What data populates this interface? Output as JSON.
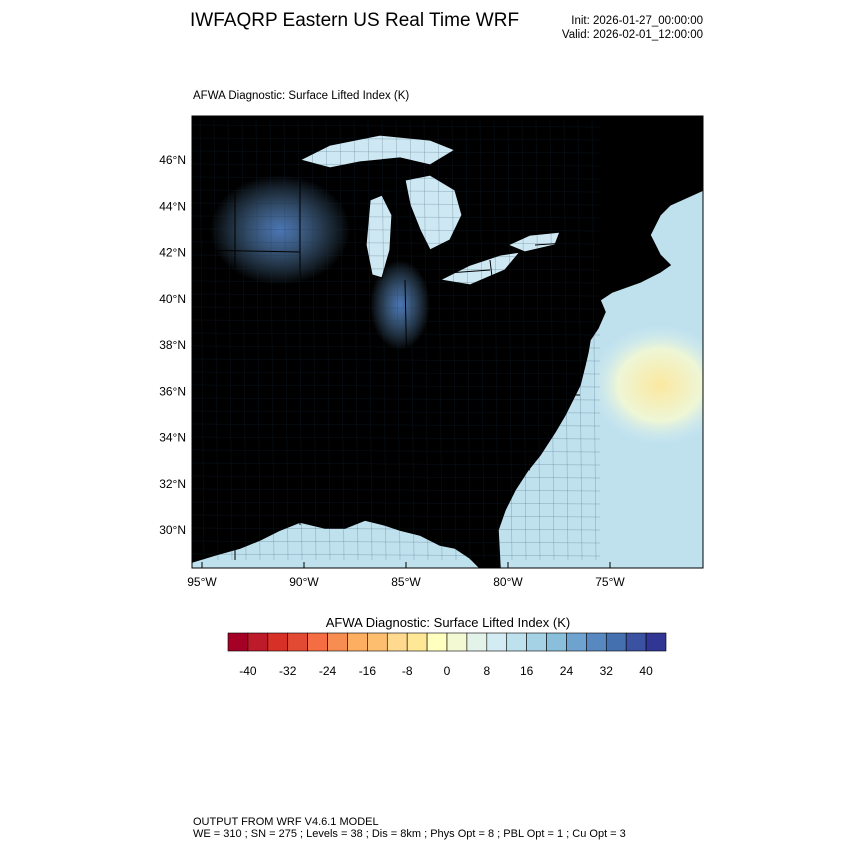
{
  "header": {
    "title": "IWFAQRP Eastern US Real Time WRF",
    "init": "Init: 2026-01-27_00:00:00",
    "valid": "Valid: 2026-02-01_12:00:00"
  },
  "plot": {
    "subtitle": "AFWA Diagnostic: Surface Lifted Index   (K)",
    "lat_labels": [
      "46°N",
      "44°N",
      "42°N",
      "40°N",
      "38°N",
      "36°N",
      "34°N",
      "32°N",
      "30°N"
    ],
    "lon_labels": [
      "95°W",
      "90°W",
      "85°W",
      "80°W",
      "75°W"
    ],
    "land_color": "#6fa3cf",
    "water_color": "#bfe1ee",
    "max_color": "#fbe8a0"
  },
  "colorbar": {
    "title": "AFWA Diagnostic: Surface Lifted Index  (K)",
    "labels": [
      "-40",
      "-32",
      "-24",
      "-16",
      "-8",
      "0",
      "8",
      "16",
      "24",
      "32",
      "40"
    ],
    "colors": [
      "#a50026",
      "#be1b2a",
      "#d73027",
      "#e34a33",
      "#f46d43",
      "#f88d52",
      "#fdae61",
      "#fdbf6f",
      "#fed98e",
      "#fee896",
      "#ffffbf",
      "#f2f9d3",
      "#e3f3ea",
      "#d3ecf3",
      "#bde2ee",
      "#a6d2e5",
      "#8abfdc",
      "#6fa3cf",
      "#5888c0",
      "#4470b0",
      "#3a52a1",
      "#313695"
    ]
  },
  "footer": {
    "line1": "OUTPUT FROM WRF V4.6.1 MODEL",
    "line2": "WE = 310 ; SN = 275 ; Levels = 38 ; Dis = 8km ; Phys Opt = 8 ; PBL Opt = 1 ; Cu Opt = 3"
  }
}
